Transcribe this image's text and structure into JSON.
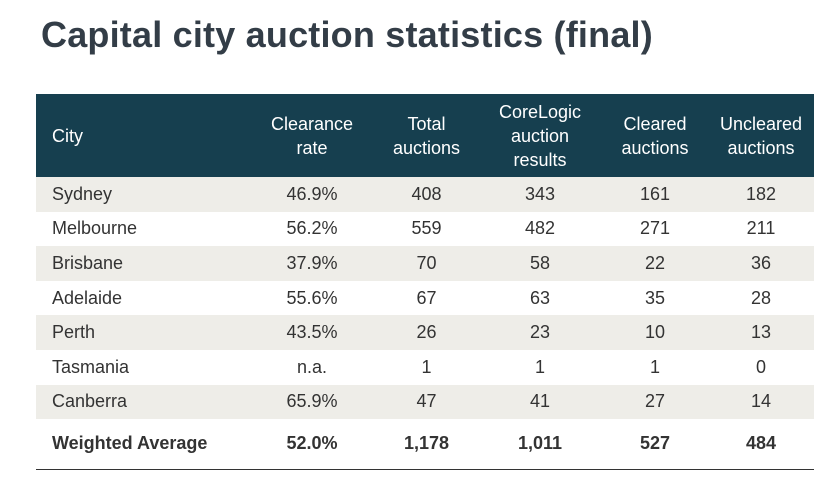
{
  "title": "Capital city auction statistics (final)",
  "table": {
    "headers": {
      "city": "City",
      "clearance_rate": [
        "Clearance",
        "rate"
      ],
      "total_auctions": [
        "Total",
        "auctions"
      ],
      "corelogic": [
        "CoreLogic",
        "auction",
        "results"
      ],
      "cleared": [
        "Cleared",
        "auctions"
      ],
      "uncleared": [
        "Uncleared",
        "auctions"
      ]
    },
    "rows": [
      [
        "Sydney",
        "46.9%",
        "408",
        "343",
        "161",
        "182"
      ],
      [
        "Melbourne",
        "56.2%",
        "559",
        "482",
        "271",
        "211"
      ],
      [
        "Brisbane",
        "37.9%",
        "70",
        "58",
        "22",
        "36"
      ],
      [
        "Adelaide",
        "55.6%",
        "67",
        "63",
        "35",
        "28"
      ],
      [
        "Perth",
        "43.5%",
        "26",
        "23",
        "10",
        "13"
      ],
      [
        "Tasmania",
        "n.a.",
        "1",
        "1",
        "1",
        "0"
      ],
      [
        "Canberra",
        "65.9%",
        "47",
        "41",
        "27",
        "14"
      ]
    ],
    "total": [
      "Weighted Average",
      "52.0%",
      "1,178",
      "1,011",
      "527",
      "484"
    ]
  }
}
